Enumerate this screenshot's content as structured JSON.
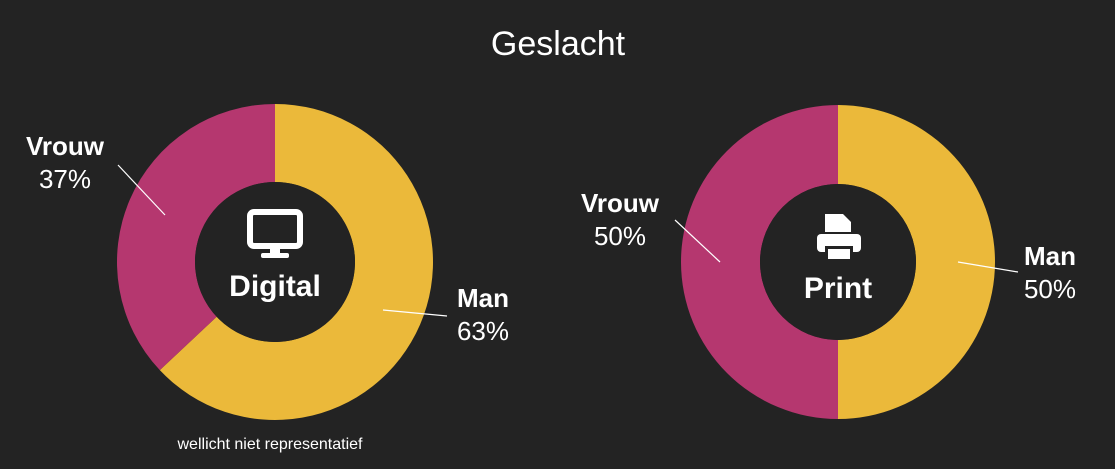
{
  "title": "Geslacht",
  "note": "wellicht niet representatief",
  "chart_data": [
    {
      "type": "pie",
      "center_label": "Digital",
      "categories": [
        "Man",
        "Vrouw"
      ],
      "values": [
        63,
        37
      ],
      "value_labels": [
        "63%",
        "37%"
      ],
      "colors": [
        "#ebb93a",
        "#b5376f"
      ]
    },
    {
      "type": "pie",
      "center_label": "Print",
      "categories": [
        "Man",
        "Vrouw"
      ],
      "values": [
        50,
        50
      ],
      "value_labels": [
        "50%",
        "50%"
      ],
      "colors": [
        "#ebb93a",
        "#b5376f"
      ]
    }
  ]
}
